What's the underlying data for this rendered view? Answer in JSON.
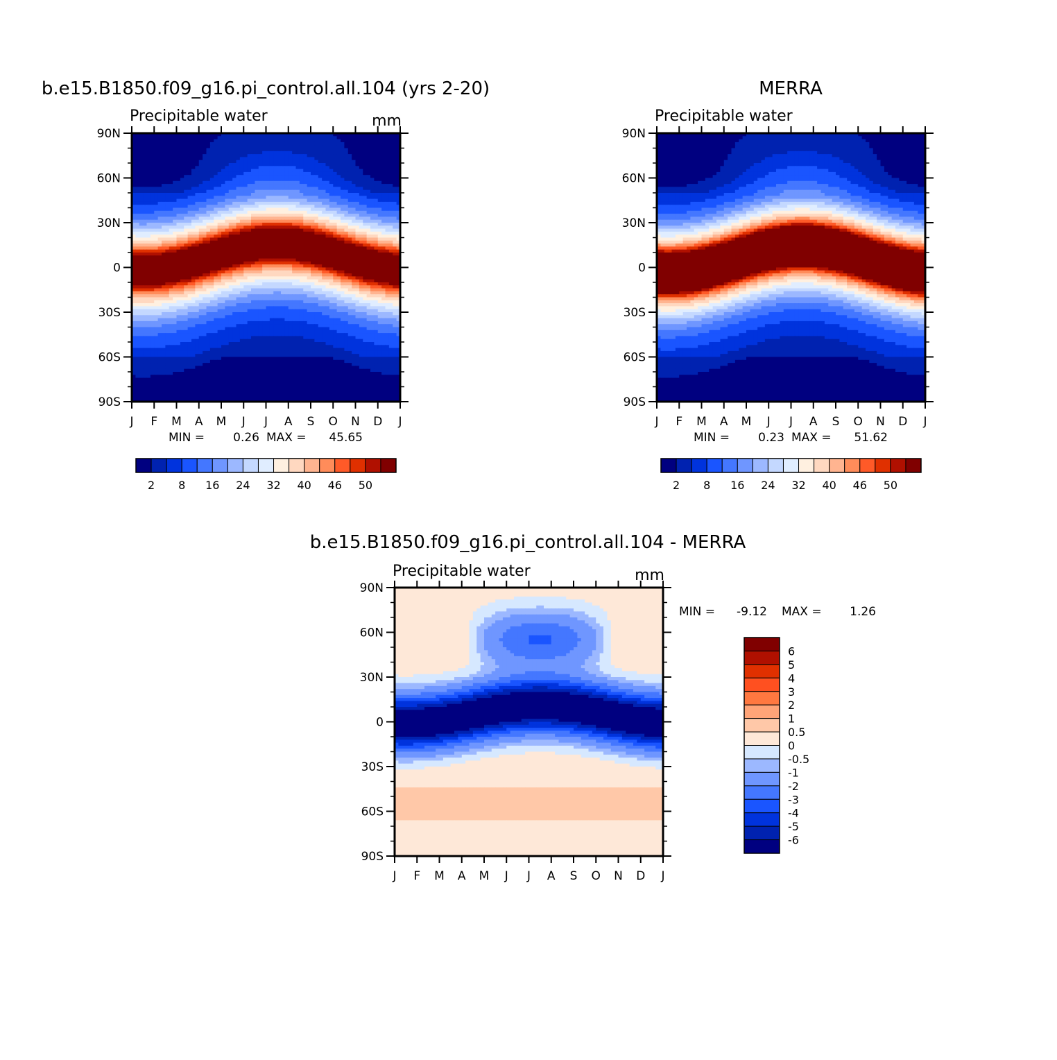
{
  "palette": [
    "#000080",
    "#0022b0",
    "#0033dd",
    "#1a55ff",
    "#4477ff",
    "#6f96ff",
    "#9cb8ff",
    "#c4d8ff",
    "#e0edff",
    "#fff0e0",
    "#ffd8c0",
    "#ffb490",
    "#ff8c5a",
    "#ff5a28",
    "#e03000",
    "#b01000",
    "#800000"
  ],
  "chart_data": [
    {
      "type": "heatmap",
      "title": "b.e15.B1850.f09_g16.pi_control.all.104 (yrs 2-20)",
      "subtitle": "Precipitable water",
      "units": "mm",
      "x_ticks": [
        "J",
        "F",
        "M",
        "A",
        "M",
        "J",
        "J",
        "A",
        "S",
        "O",
        "N",
        "D",
        "J"
      ],
      "y_ticks": [
        "90N",
        "60N",
        "30N",
        "0",
        "30S",
        "60S",
        "90S"
      ],
      "xlim": [
        0,
        12
      ],
      "ylim": [
        -90,
        90
      ],
      "min_label": "MIN =",
      "min_value": "0.26",
      "max_label": "MAX =",
      "max_value": "45.65",
      "field": {
        "peak": 45.65,
        "itcz_mean": 8,
        "itcz_amp": 9
      },
      "levels": [
        2,
        5,
        8,
        12,
        16,
        20,
        24,
        28,
        32,
        36,
        40,
        43,
        46,
        48,
        50,
        52
      ],
      "colorbar_labels": [
        "2",
        "8",
        "16",
        "24",
        "32",
        "40",
        "46",
        "50"
      ]
    },
    {
      "type": "heatmap",
      "title": "MERRA",
      "subtitle": "Precipitable water",
      "units": "",
      "x_ticks": [
        "J",
        "F",
        "M",
        "A",
        "M",
        "J",
        "J",
        "A",
        "S",
        "O",
        "N",
        "D",
        "J"
      ],
      "y_ticks": [
        "90N",
        "60N",
        "30N",
        "0",
        "30S",
        "60S",
        "90S"
      ],
      "xlim": [
        0,
        12
      ],
      "ylim": [
        -90,
        90
      ],
      "min_label": "MIN =",
      "min_value": "0.23",
      "max_label": "MAX =",
      "max_value": "51.62",
      "field": {
        "peak": 51.62,
        "itcz_mean": 6,
        "itcz_amp": 9
      },
      "levels": [
        2,
        5,
        8,
        12,
        16,
        20,
        24,
        28,
        32,
        36,
        40,
        43,
        46,
        48,
        50,
        52
      ],
      "colorbar_labels": [
        "2",
        "8",
        "16",
        "24",
        "32",
        "40",
        "46",
        "50"
      ]
    },
    {
      "type": "heatmap",
      "title": "b.e15.B1850.f09_g16.pi_control.all.104 - MERRA",
      "subtitle": "Precipitable water",
      "units": "mm",
      "x_ticks": [
        "J",
        "F",
        "M",
        "A",
        "M",
        "J",
        "J",
        "A",
        "S",
        "O",
        "N",
        "D",
        "J"
      ],
      "y_ticks": [
        "90N",
        "60N",
        "30N",
        "0",
        "30S",
        "60S",
        "90S"
      ],
      "xlim": [
        0,
        12
      ],
      "ylim": [
        -90,
        90
      ],
      "min_label": "MIN =",
      "min_value": "-9.12",
      "max_label": "MAX =",
      "max_value": "1.26",
      "levels": [
        -6,
        -5,
        -4,
        -3,
        -2,
        -1,
        -0.5,
        0,
        0.5,
        1,
        2,
        3,
        4,
        5,
        6
      ],
      "colorbar_labels": [
        "6",
        "5",
        "4",
        "3",
        "2",
        "1",
        "0.5",
        "0",
        "-0.5",
        "-1",
        "-2",
        "-3",
        "-4",
        "-5",
        "-6"
      ]
    }
  ]
}
